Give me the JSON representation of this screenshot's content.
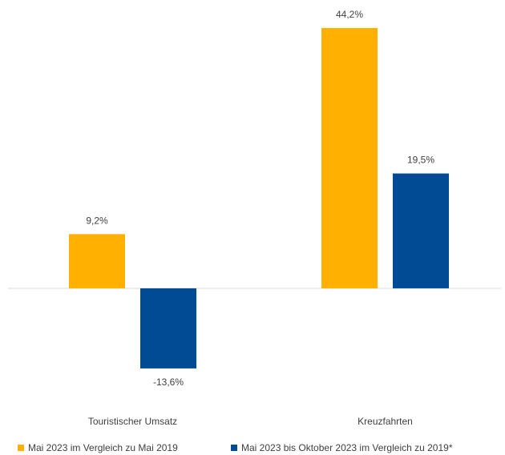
{
  "chart_data": {
    "type": "bar",
    "categories": [
      "Touristischer Umsatz",
      "Kreuzfahrten"
    ],
    "series": [
      {
        "name": "Mai 2023 im Vergleich zu Mai 2019",
        "color": "#ffb000",
        "values": [
          9.2,
          44.2
        ],
        "value_labels": [
          "9,2%",
          "44,2%"
        ]
      },
      {
        "name": "Mai 2023 bis Oktober 2023 im Vergleich zu 2019*",
        "color": "#004b93",
        "values": [
          -13.6,
          19.5
        ],
        "value_labels": [
          "-13,6%",
          "19,5%"
        ]
      }
    ],
    "ylim": [
      -20,
      48
    ]
  }
}
